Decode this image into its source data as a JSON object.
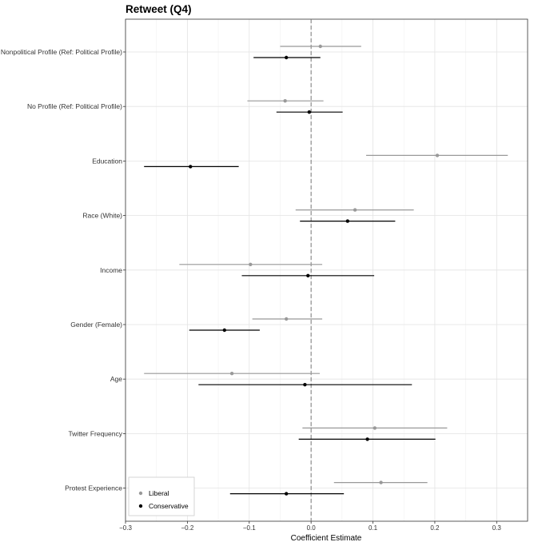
{
  "chart_data": {
    "type": "forest",
    "title": "Retweet (Q4)",
    "xlabel": "Coefficient Estimate",
    "ylabel": "",
    "xlim": [
      -0.3,
      0.35
    ],
    "x_ticks": [
      -0.3,
      -0.2,
      -0.1,
      0.0,
      0.1,
      0.2,
      0.3
    ],
    "x_tick_labels": [
      "−0.3",
      "−0.2",
      "−0.1",
      "0.0",
      "0.1",
      "0.2",
      "0.3"
    ],
    "reference_line": 0,
    "grid": true,
    "legend_position": "bottom-left",
    "categories": [
      "Nonpolitical Profile (Ref: Political Profile)",
      "No Profile (Ref: Political Profile)",
      "Education",
      "Race (White)",
      "Income",
      "Gender (Female)",
      "Age",
      "Twitter Frequency",
      "Protest Experience"
    ],
    "series": [
      {
        "name": "Liberal",
        "color": "#999999",
        "estimates": [
          0.015,
          -0.042,
          0.204,
          0.071,
          -0.098,
          -0.04,
          -0.128,
          0.103,
          0.113
        ],
        "lower": [
          -0.05,
          -0.103,
          0.089,
          -0.025,
          -0.213,
          -0.095,
          -0.27,
          -0.014,
          0.037
        ],
        "upper": [
          0.081,
          0.02,
          0.318,
          0.166,
          0.018,
          0.018,
          0.014,
          0.22,
          0.188
        ]
      },
      {
        "name": "Conservative",
        "color": "#000000",
        "estimates": [
          -0.04,
          -0.003,
          -0.195,
          0.059,
          -0.005,
          -0.14,
          -0.01,
          0.091,
          -0.04
        ],
        "lower": [
          -0.093,
          -0.056,
          -0.27,
          -0.018,
          -0.112,
          -0.197,
          -0.182,
          -0.02,
          -0.131
        ],
        "upper": [
          0.015,
          0.051,
          -0.117,
          0.136,
          0.102,
          -0.083,
          0.163,
          0.201,
          0.053
        ]
      }
    ]
  }
}
